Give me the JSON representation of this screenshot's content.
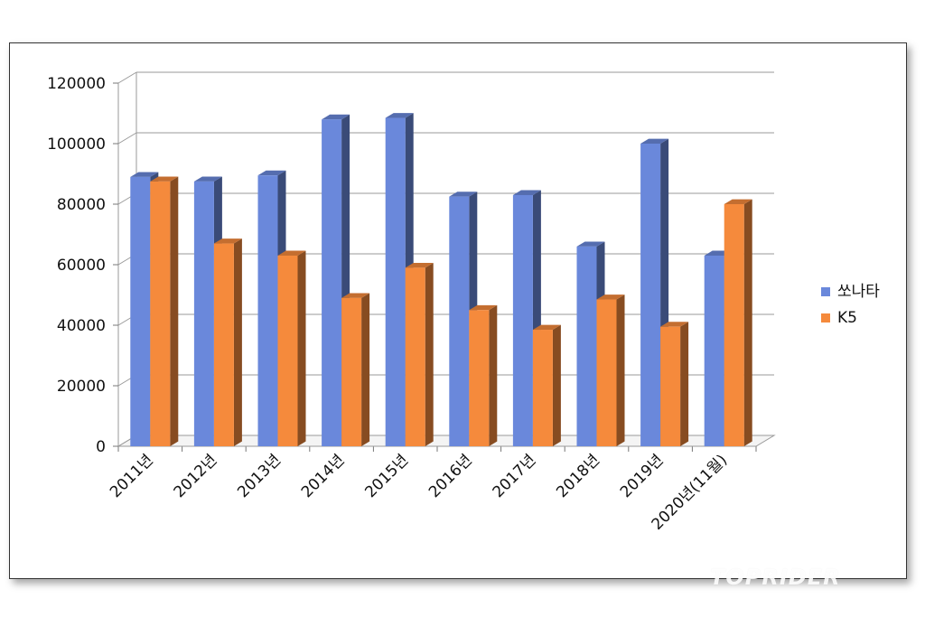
{
  "chart_data": {
    "type": "bar",
    "style": "3d-clustered-column",
    "categories": [
      "2011년",
      "2012년",
      "2013년",
      "2014년",
      "2015년",
      "2016년",
      "2017년",
      "2018년",
      "2019년",
      "2020년(11월)"
    ],
    "series": [
      {
        "name": "쏘나타",
        "color": "#6a88db",
        "values": [
          89000,
          87500,
          89500,
          108000,
          108500,
          82500,
          83000,
          66000,
          100000,
          63000
        ]
      },
      {
        "name": "K5",
        "color": "#f58a3c",
        "values": [
          87500,
          67000,
          63000,
          49000,
          59000,
          45000,
          38500,
          48500,
          39500,
          80000
        ]
      }
    ],
    "ylim": [
      0,
      120000
    ],
    "yticks": [
      "0",
      "20000",
      "40000",
      "60000",
      "80000",
      "100000",
      "120000"
    ],
    "grid": true,
    "legend_position": "right"
  },
  "watermark": "TOPRIDER"
}
